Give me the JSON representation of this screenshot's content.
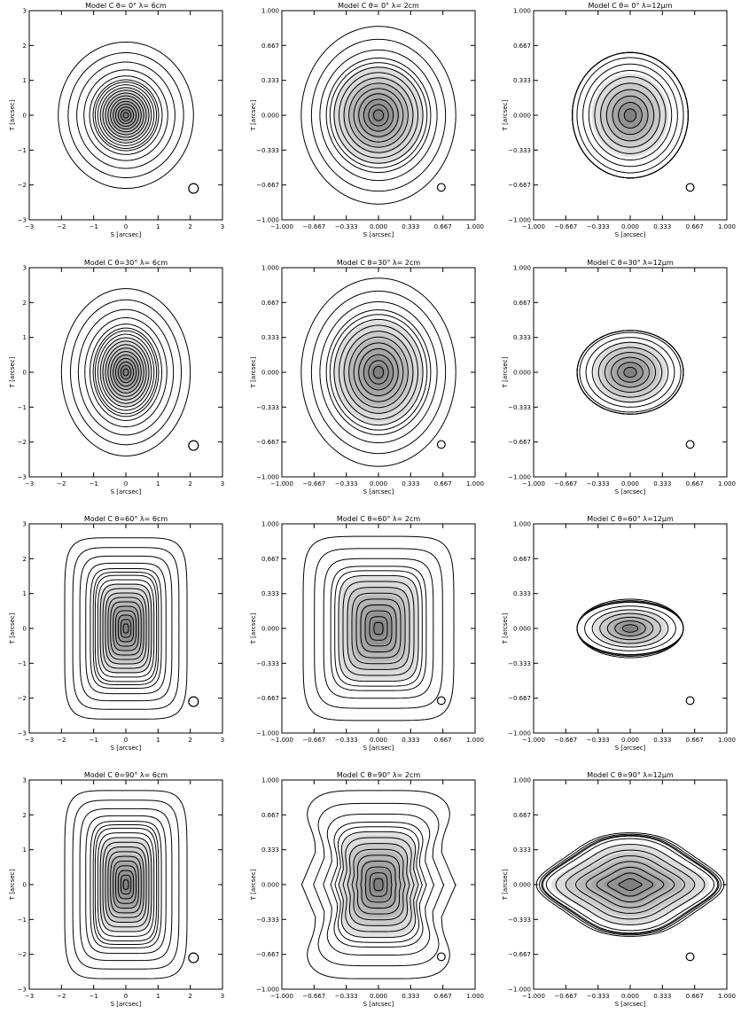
{
  "chart_data": [
    {
      "type": "contour",
      "title": "Model C θ= 0° λ= 6cm",
      "xlabel": "S [arcsec]",
      "ylabel": "T [arcsec]",
      "xlim": [
        -3,
        3
      ],
      "ylim": [
        -3,
        3
      ],
      "ticks": [
        -3,
        -2,
        -1,
        0,
        1,
        2,
        3
      ],
      "tick_labels": [
        "−3",
        "−2",
        "−1",
        "0",
        "1",
        "2",
        "3"
      ],
      "contours": {
        "rx": 1.0,
        "ry": 1.0,
        "shape": "circle",
        "fill_rx": 0.8,
        "fill_ry": 0.8,
        "outer_extent": [
          2.1,
          2.1
        ],
        "levels": 18
      },
      "beam": {
        "x": 2.1,
        "y": -2.1,
        "r": 0.15
      }
    },
    {
      "type": "contour",
      "title": "Model C θ= 0° λ= 2cm",
      "xlabel": "S [arcsec]",
      "ylabel": "T [arcsec]",
      "xlim": [
        -1,
        1
      ],
      "ylim": [
        -1,
        1
      ],
      "ticks": [
        -1,
        -0.667,
        -0.333,
        0,
        0.333,
        0.667,
        1
      ],
      "tick_labels": [
        "−1.000",
        "−0.667",
        "−0.333",
        "0.000",
        "0.333",
        "0.667",
        "1.000"
      ],
      "contours": {
        "rx": 0.5,
        "ry": 0.5,
        "shape": "circle",
        "fill_rx": 0.47,
        "fill_ry": 0.47,
        "outer_extent": [
          0.8,
          0.85
        ],
        "levels": 14
      },
      "beam": {
        "x": 0.65,
        "y": -0.69,
        "r": 0.04
      }
    },
    {
      "type": "contour",
      "title": "Model C θ= 0° λ=12µm",
      "xlabel": "S [arcsec]",
      "ylabel": "T [arcsec]",
      "xlim": [
        -1,
        1
      ],
      "ylim": [
        -1,
        1
      ],
      "ticks": [
        -1,
        -0.667,
        -0.333,
        0,
        0.333,
        0.667,
        1
      ],
      "tick_labels": [
        "−1.000",
        "−0.667",
        "−0.333",
        "0.000",
        "0.333",
        "0.667",
        "1.000"
      ],
      "contours": {
        "rx": 0.6,
        "ry": 0.6,
        "shape": "circle",
        "fill_rx": 0.4,
        "fill_ry": 0.4,
        "outer_extent": [
          0.6,
          0.6
        ],
        "levels": 14
      },
      "beam": {
        "x": 0.62,
        "y": -0.69,
        "r": 0.04
      }
    },
    {
      "type": "contour",
      "title": "Model C θ=30° λ= 6cm",
      "xlabel": "S [arcsec]",
      "ylabel": "T [arcsec]",
      "xlim": [
        -3,
        3
      ],
      "ylim": [
        -3,
        3
      ],
      "ticks": [
        -3,
        -2,
        -1,
        0,
        1,
        2,
        3
      ],
      "tick_labels": [
        "−3",
        "−2",
        "−1",
        "0",
        "1",
        "2",
        "3"
      ],
      "contours": {
        "rx": 1.0,
        "ry": 1.25,
        "shape": "ellipse",
        "fill_rx": 0.8,
        "fill_ry": 1.0,
        "outer_extent": [
          2.0,
          2.4
        ],
        "levels": 18
      },
      "beam": {
        "x": 2.1,
        "y": -2.1,
        "r": 0.15
      }
    },
    {
      "type": "contour",
      "title": "Model C θ=30° λ= 2cm",
      "xlabel": "S [arcsec]",
      "ylabel": "T [arcsec]",
      "xlim": [
        -1,
        1
      ],
      "ylim": [
        -1,
        1
      ],
      "ticks": [
        -1,
        -0.667,
        -0.333,
        0,
        0.333,
        0.667,
        1
      ],
      "tick_labels": [
        "−1.000",
        "−0.667",
        "−0.333",
        "0.000",
        "0.333",
        "0.667",
        "1.000"
      ],
      "contours": {
        "rx": 0.5,
        "ry": 0.55,
        "shape": "ellipse",
        "fill_rx": 0.47,
        "fill_ry": 0.5,
        "outer_extent": [
          0.8,
          0.9
        ],
        "levels": 14
      },
      "beam": {
        "x": 0.65,
        "y": -0.69,
        "r": 0.04
      }
    },
    {
      "type": "contour",
      "title": "Model C θ=30° λ=12µm",
      "xlabel": "S [arcsec]",
      "ylabel": "T [arcsec]",
      "xlim": [
        -1,
        1
      ],
      "ylim": [
        -1,
        1
      ],
      "ticks": [
        -1,
        -0.667,
        -0.333,
        0,
        0.333,
        0.667,
        1
      ],
      "tick_labels": [
        "−1.000",
        "−0.667",
        "−0.333",
        "0.000",
        "0.333",
        "0.667",
        "1.000"
      ],
      "contours": {
        "rx": 0.55,
        "ry": 0.4,
        "shape": "ellipse",
        "fill_rx": 0.38,
        "fill_ry": 0.3,
        "outer_extent": [
          0.55,
          0.4
        ],
        "levels": 12
      },
      "beam": {
        "x": 0.62,
        "y": -0.69,
        "r": 0.04
      }
    },
    {
      "type": "contour",
      "title": "Model C θ=60° λ= 6cm",
      "xlabel": "S [arcsec]",
      "ylabel": "T [arcsec]",
      "xlim": [
        -3,
        3
      ],
      "ylim": [
        -3,
        3
      ],
      "ticks": [
        -3,
        -2,
        -1,
        0,
        1,
        2,
        3
      ],
      "tick_labels": [
        "−3",
        "−2",
        "−1",
        "0",
        "1",
        "2",
        "3"
      ],
      "contours": {
        "rx": 1.0,
        "ry": 1.6,
        "shape": "rounded-box",
        "fill_rx": 0.85,
        "fill_ry": 1.3,
        "outer_extent": [
          1.9,
          2.6
        ],
        "levels": 18
      },
      "beam": {
        "x": 2.1,
        "y": -2.1,
        "r": 0.15
      }
    },
    {
      "type": "contour",
      "title": "Model C θ=60° λ= 2cm",
      "xlabel": "S [arcsec]",
      "ylabel": "T [arcsec]",
      "xlim": [
        -1,
        1
      ],
      "ylim": [
        -1,
        1
      ],
      "ticks": [
        -1,
        -0.667,
        -0.333,
        0,
        0.333,
        0.667,
        1
      ],
      "tick_labels": [
        "−1.000",
        "−0.667",
        "−0.333",
        "0.000",
        "0.333",
        "0.667",
        "1.000"
      ],
      "contours": {
        "rx": 0.45,
        "ry": 0.55,
        "shape": "rounded-box",
        "fill_rx": 0.42,
        "fill_ry": 0.5,
        "outer_extent": [
          0.78,
          0.88
        ],
        "levels": 14
      },
      "beam": {
        "x": 0.65,
        "y": -0.69,
        "r": 0.04
      }
    },
    {
      "type": "contour",
      "title": "Model C θ=60° λ=12µm",
      "xlabel": "S [arcsec]",
      "ylabel": "T [arcsec]",
      "xlim": [
        -1,
        1
      ],
      "ylim": [
        -1,
        1
      ],
      "ticks": [
        -1,
        -0.667,
        -0.333,
        0,
        0.333,
        0.667,
        1
      ],
      "tick_labels": [
        "−1.000",
        "−0.667",
        "−0.333",
        "0.000",
        "0.333",
        "0.667",
        "1.000"
      ],
      "contours": {
        "rx": 0.55,
        "ry": 0.25,
        "shape": "ellipse",
        "fill_rx": 0.38,
        "fill_ry": 0.18,
        "outer_extent": [
          0.55,
          0.28
        ],
        "levels": 10
      },
      "beam": {
        "x": 0.62,
        "y": -0.69,
        "r": 0.04
      }
    },
    {
      "type": "contour",
      "title": "Model C θ=90° λ= 6cm",
      "xlabel": "S [arcsec]",
      "ylabel": "T [arcsec]",
      "xlim": [
        -3,
        3
      ],
      "ylim": [
        -3,
        3
      ],
      "ticks": [
        -3,
        -2,
        -1,
        0,
        1,
        2,
        3
      ],
      "tick_labels": [
        "−3",
        "−2",
        "−1",
        "0",
        "1",
        "2",
        "3"
      ],
      "contours": {
        "rx": 1.0,
        "ry": 1.7,
        "shape": "rounded-box",
        "fill_rx": 0.85,
        "fill_ry": 1.35,
        "outer_extent": [
          1.9,
          2.7
        ],
        "levels": 18
      },
      "beam": {
        "x": 2.1,
        "y": -2.1,
        "r": 0.15
      }
    },
    {
      "type": "contour",
      "title": "Model C θ=90° λ= 2cm",
      "xlabel": "S [arcsec]",
      "ylabel": "T [arcsec]",
      "xlim": [
        -1,
        1
      ],
      "ylim": [
        -1,
        1
      ],
      "ticks": [
        -1,
        -0.667,
        -0.333,
        0,
        0.333,
        0.667,
        1
      ],
      "tick_labels": [
        "−1.000",
        "−0.667",
        "−0.333",
        "0.000",
        "0.333",
        "0.667",
        "1.000"
      ],
      "contours": {
        "rx": 0.45,
        "ry": 0.55,
        "shape": "pinched-box",
        "fill_rx": 0.42,
        "fill_ry": 0.5,
        "outer_extent": [
          0.8,
          0.9
        ],
        "levels": 14
      },
      "beam": {
        "x": 0.65,
        "y": -0.69,
        "r": 0.04
      }
    },
    {
      "type": "contour",
      "title": "Model C θ=90° λ=12µm",
      "xlabel": "S [arcsec]",
      "ylabel": "T [arcsec]",
      "xlim": [
        -1,
        1
      ],
      "ylim": [
        -1,
        1
      ],
      "ticks": [
        -1,
        -0.667,
        -0.333,
        0,
        0.333,
        0.667,
        1
      ],
      "tick_labels": [
        "−1.000",
        "−0.667",
        "−0.333",
        "0.000",
        "0.333",
        "0.667",
        "1.000"
      ],
      "contours": {
        "rx": 0.8,
        "ry": 0.42,
        "shape": "double-lobe",
        "fill_rx": 0.7,
        "fill_ry": 0.35,
        "outer_extent": [
          0.9,
          0.45
        ],
        "levels": 12
      },
      "beam": {
        "x": 0.62,
        "y": -0.69,
        "r": 0.04
      }
    }
  ]
}
